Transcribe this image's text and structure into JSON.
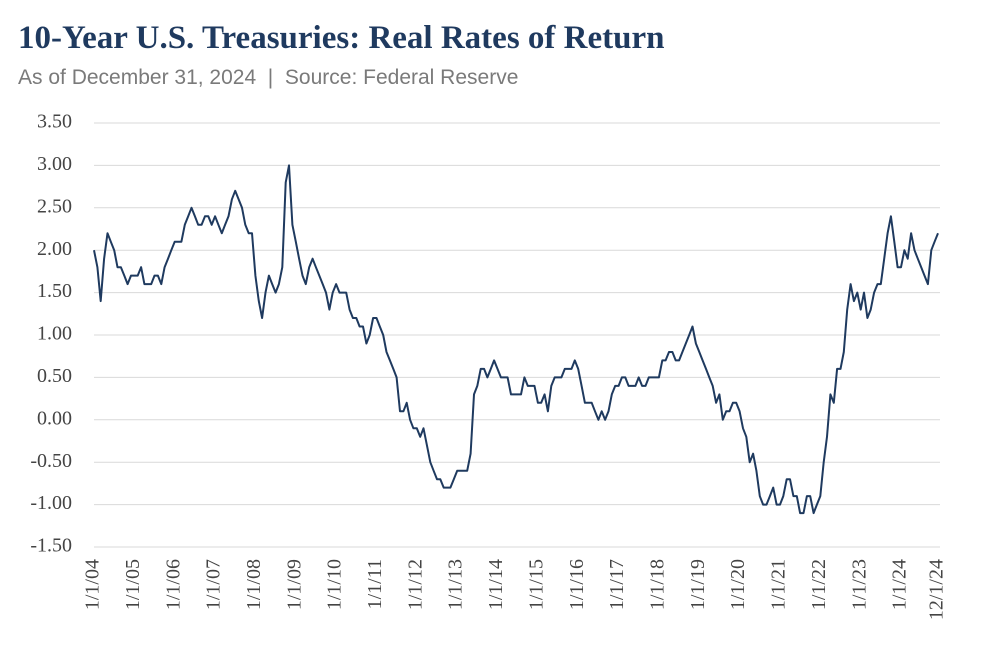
{
  "chart_data": {
    "type": "line",
    "title": "10-Year U.S. Treasuries: Real Rates of Return",
    "subtitle": "As of December 31, 2024  |  Source: Federal Reserve",
    "color": "#1f3a5f",
    "grid": true,
    "ylim": [
      -1.5,
      3.5
    ],
    "yticks": [
      {
        "value": 3.5,
        "label": "3.50"
      },
      {
        "value": 3,
        "label": "3.00"
      },
      {
        "value": 2.5,
        "label": "2.50"
      },
      {
        "value": 2,
        "label": "2.00"
      },
      {
        "value": 1.5,
        "label": "1.50"
      },
      {
        "value": 1,
        "label": "1.00"
      },
      {
        "value": 0.5,
        "label": "0.50"
      },
      {
        "value": 0,
        "label": "0.00"
      },
      {
        "value": -0.5,
        "label": "-0.50"
      },
      {
        "value": -1,
        "label": "-1.00"
      },
      {
        "value": -1.5,
        "label": "-1.50"
      }
    ],
    "xticks": [
      "1/1/04",
      "1/1/05",
      "1/1/06",
      "1/1/07",
      "1/1/08",
      "1/1/09",
      "1/1/10",
      "1/1/11",
      "1/1/12",
      "1/1/13",
      "1/1/14",
      "1/1/15",
      "1/1/16",
      "1/1/17",
      "1/1/18",
      "1/1/19",
      "1/1/20",
      "1/1/21",
      "1/1/22",
      "1/1/23",
      "1/1/24",
      "12/1/24"
    ],
    "x": [
      "1/1/04",
      "2/1/04",
      "3/1/04",
      "4/1/04",
      "5/1/04",
      "6/1/04",
      "7/1/04",
      "8/1/04",
      "9/1/04",
      "10/1/04",
      "11/1/04",
      "12/1/04",
      "1/1/05",
      "2/1/05",
      "3/1/05",
      "4/1/05",
      "5/1/05",
      "6/1/05",
      "7/1/05",
      "8/1/05",
      "9/1/05",
      "10/1/05",
      "11/1/05",
      "12/1/05",
      "1/1/06",
      "2/1/06",
      "3/1/06",
      "4/1/06",
      "5/1/06",
      "6/1/06",
      "7/1/06",
      "8/1/06",
      "9/1/06",
      "10/1/06",
      "11/1/06",
      "12/1/06",
      "1/1/07",
      "2/1/07",
      "3/1/07",
      "4/1/07",
      "5/1/07",
      "6/1/07",
      "7/1/07",
      "8/1/07",
      "9/1/07",
      "10/1/07",
      "11/1/07",
      "12/1/07",
      "1/1/08",
      "2/1/08",
      "3/1/08",
      "4/1/08",
      "5/1/08",
      "6/1/08",
      "7/1/08",
      "8/1/08",
      "9/1/08",
      "10/1/08",
      "11/1/08",
      "12/1/08",
      "1/1/09",
      "2/1/09",
      "3/1/09",
      "4/1/09",
      "5/1/09",
      "6/1/09",
      "7/1/09",
      "8/1/09",
      "9/1/09",
      "10/1/09",
      "11/1/09",
      "12/1/09",
      "1/1/10",
      "2/1/10",
      "3/1/10",
      "4/1/10",
      "5/1/10",
      "6/1/10",
      "7/1/10",
      "8/1/10",
      "9/1/10",
      "10/1/10",
      "11/1/10",
      "12/1/10",
      "1/1/11",
      "2/1/11",
      "3/1/11",
      "4/1/11",
      "5/1/11",
      "6/1/11",
      "7/1/11",
      "8/1/11",
      "9/1/11",
      "10/1/11",
      "11/1/11",
      "12/1/11",
      "1/1/12",
      "2/1/12",
      "3/1/12",
      "4/1/12",
      "5/1/12",
      "6/1/12",
      "7/1/12",
      "8/1/12",
      "9/1/12",
      "10/1/12",
      "11/1/12",
      "12/1/12",
      "1/1/13",
      "2/1/13",
      "3/1/13",
      "4/1/13",
      "5/1/13",
      "6/1/13",
      "7/1/13",
      "8/1/13",
      "9/1/13",
      "10/1/13",
      "11/1/13",
      "12/1/13",
      "1/1/14",
      "2/1/14",
      "3/1/14",
      "4/1/14",
      "5/1/14",
      "6/1/14",
      "7/1/14",
      "8/1/14",
      "9/1/14",
      "10/1/14",
      "11/1/14",
      "12/1/14",
      "1/1/15",
      "2/1/15",
      "3/1/15",
      "4/1/15",
      "5/1/15",
      "6/1/15",
      "7/1/15",
      "8/1/15",
      "9/1/15",
      "10/1/15",
      "11/1/15",
      "12/1/15",
      "1/1/16",
      "2/1/16",
      "3/1/16",
      "4/1/16",
      "5/1/16",
      "6/1/16",
      "7/1/16",
      "8/1/16",
      "9/1/16",
      "10/1/16",
      "11/1/16",
      "12/1/16",
      "1/1/17",
      "2/1/17",
      "3/1/17",
      "4/1/17",
      "5/1/17",
      "6/1/17",
      "7/1/17",
      "8/1/17",
      "9/1/17",
      "10/1/17",
      "11/1/17",
      "12/1/17",
      "1/1/18",
      "2/1/18",
      "3/1/18",
      "4/1/18",
      "5/1/18",
      "6/1/18",
      "7/1/18",
      "8/1/18",
      "9/1/18",
      "10/1/18",
      "11/1/18",
      "12/1/18",
      "1/1/19",
      "2/1/19",
      "3/1/19",
      "4/1/19",
      "5/1/19",
      "6/1/19",
      "7/1/19",
      "8/1/19",
      "9/1/19",
      "10/1/19",
      "11/1/19",
      "12/1/19",
      "1/1/20",
      "2/1/20",
      "3/1/20",
      "4/1/20",
      "5/1/20",
      "6/1/20",
      "7/1/20",
      "8/1/20",
      "9/1/20",
      "10/1/20",
      "11/1/20",
      "12/1/20",
      "1/1/21",
      "2/1/21",
      "3/1/21",
      "4/1/21",
      "5/1/21",
      "6/1/21",
      "7/1/21",
      "8/1/21",
      "9/1/21",
      "10/1/21",
      "11/1/21",
      "12/1/21",
      "1/1/22",
      "2/1/22",
      "3/1/22",
      "4/1/22",
      "5/1/22",
      "6/1/22",
      "7/1/22",
      "8/1/22",
      "9/1/22",
      "10/1/22",
      "11/1/22",
      "12/1/22",
      "1/1/23",
      "2/1/23",
      "3/1/23",
      "4/1/23",
      "5/1/23",
      "6/1/23",
      "7/1/23",
      "8/1/23",
      "9/1/23",
      "10/1/23",
      "11/1/23",
      "12/1/23",
      "1/1/24",
      "2/1/24",
      "3/1/24",
      "4/1/24",
      "5/1/24",
      "6/1/24",
      "7/1/24",
      "8/1/24",
      "9/1/24",
      "10/1/24",
      "11/1/24",
      "12/1/24"
    ],
    "values": [
      2.0,
      1.8,
      1.4,
      1.9,
      2.2,
      2.1,
      2.0,
      1.8,
      1.8,
      1.7,
      1.6,
      1.7,
      1.7,
      1.7,
      1.8,
      1.6,
      1.6,
      1.6,
      1.7,
      1.7,
      1.6,
      1.8,
      1.9,
      2.0,
      2.1,
      2.1,
      2.1,
      2.3,
      2.4,
      2.5,
      2.4,
      2.3,
      2.3,
      2.4,
      2.4,
      2.3,
      2.4,
      2.3,
      2.2,
      2.3,
      2.4,
      2.6,
      2.7,
      2.6,
      2.5,
      2.3,
      2.2,
      2.2,
      1.7,
      1.4,
      1.2,
      1.5,
      1.7,
      1.6,
      1.5,
      1.6,
      1.8,
      2.8,
      3.0,
      2.3,
      2.1,
      1.9,
      1.7,
      1.6,
      1.8,
      1.9,
      1.8,
      1.7,
      1.6,
      1.5,
      1.3,
      1.5,
      1.6,
      1.5,
      1.5,
      1.5,
      1.3,
      1.2,
      1.2,
      1.1,
      1.1,
      0.9,
      1.0,
      1.2,
      1.2,
      1.1,
      1.0,
      0.8,
      0.7,
      0.6,
      0.5,
      0.1,
      0.1,
      0.2,
      0.0,
      -0.1,
      -0.1,
      -0.2,
      -0.1,
      -0.3,
      -0.5,
      -0.6,
      -0.7,
      -0.7,
      -0.8,
      -0.8,
      -0.8,
      -0.7,
      -0.6,
      -0.6,
      -0.6,
      -0.6,
      -0.4,
      0.3,
      0.4,
      0.6,
      0.6,
      0.5,
      0.6,
      0.7,
      0.6,
      0.5,
      0.5,
      0.5,
      0.3,
      0.3,
      0.3,
      0.3,
      0.5,
      0.4,
      0.4,
      0.4,
      0.2,
      0.2,
      0.3,
      0.1,
      0.4,
      0.5,
      0.5,
      0.5,
      0.6,
      0.6,
      0.6,
      0.7,
      0.6,
      0.4,
      0.2,
      0.2,
      0.2,
      0.1,
      0.0,
      0.1,
      0.0,
      0.1,
      0.3,
      0.4,
      0.4,
      0.5,
      0.5,
      0.4,
      0.4,
      0.4,
      0.5,
      0.4,
      0.4,
      0.5,
      0.5,
      0.5,
      0.5,
      0.7,
      0.7,
      0.8,
      0.8,
      0.7,
      0.7,
      0.8,
      0.9,
      1.0,
      1.1,
      0.9,
      0.8,
      0.7,
      0.6,
      0.5,
      0.4,
      0.2,
      0.3,
      0.0,
      0.1,
      0.1,
      0.2,
      0.2,
      0.1,
      -0.1,
      -0.2,
      -0.5,
      -0.4,
      -0.6,
      -0.9,
      -1.0,
      -1.0,
      -0.9,
      -0.8,
      -1.0,
      -1.0,
      -0.9,
      -0.7,
      -0.7,
      -0.9,
      -0.9,
      -1.1,
      -1.1,
      -0.9,
      -0.9,
      -1.1,
      -1.0,
      -0.9,
      -0.5,
      -0.2,
      0.3,
      0.2,
      0.6,
      0.6,
      0.8,
      1.3,
      1.6,
      1.4,
      1.5,
      1.3,
      1.5,
      1.2,
      1.3,
      1.5,
      1.6,
      1.6,
      1.9,
      2.2,
      2.4,
      2.1,
      1.8,
      1.8,
      2.0,
      1.9,
      2.2,
      2.0,
      1.9,
      1.8,
      1.7,
      1.6,
      2.0,
      2.1,
      2.2
    ]
  }
}
